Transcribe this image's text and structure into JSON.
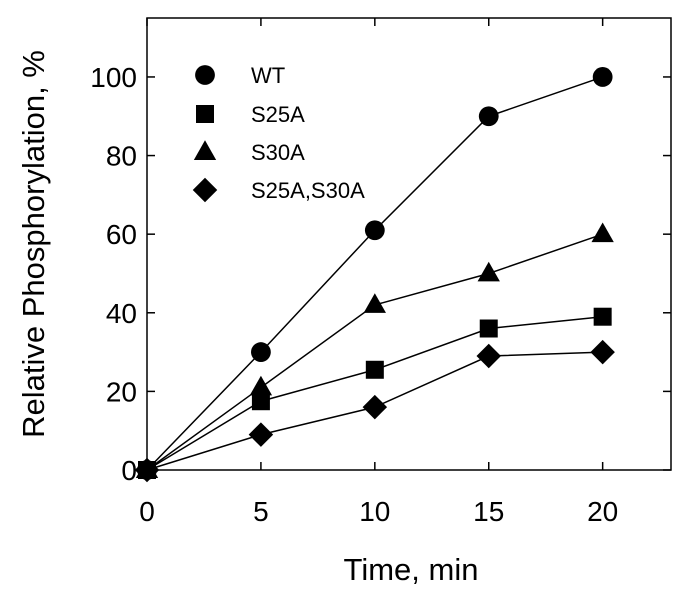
{
  "chart_data": {
    "type": "line",
    "title": "",
    "xlabel": "Time, min",
    "ylabel": "Relative Phosphorylation, %",
    "xlim": [
      0,
      23
    ],
    "ylim": [
      0,
      115
    ],
    "xticks": [
      0,
      5,
      10,
      15,
      20
    ],
    "yticks": [
      0,
      20,
      40,
      60,
      80,
      100
    ],
    "grid": false,
    "legend_position": "top-left",
    "x": [
      0,
      5,
      10,
      15,
      20
    ],
    "series": [
      {
        "name": "WT",
        "marker": "circle",
        "values": [
          0,
          30,
          61,
          90,
          100
        ]
      },
      {
        "name": "S25A",
        "marker": "square",
        "values": [
          0,
          17.5,
          25.5,
          36,
          39
        ]
      },
      {
        "name": "S30A",
        "marker": "triangle",
        "values": [
          0,
          21,
          42,
          50,
          60
        ]
      },
      {
        "name": "S25A,S30A",
        "marker": "diamond",
        "values": [
          0,
          9,
          16,
          29,
          30
        ]
      }
    ]
  },
  "colors": {
    "ink": "#000000",
    "background": "#ffffff"
  }
}
